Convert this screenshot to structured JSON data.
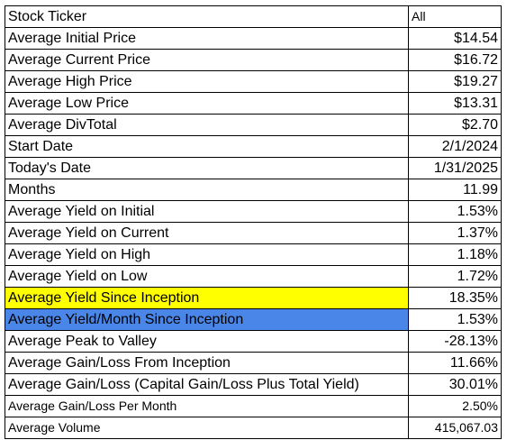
{
  "table": {
    "rows": [
      {
        "label": "Stock Ticker",
        "value": "All"
      },
      {
        "label": "Average Initial Price",
        "value": "$14.54"
      },
      {
        "label": "Average Current Price",
        "value": "$16.72"
      },
      {
        "label": "Average High Price",
        "value": "$19.27"
      },
      {
        "label": "Average Low Price",
        "value": "$13.31"
      },
      {
        "label": "Average DivTotal",
        "value": "$2.70"
      },
      {
        "label": "Start Date",
        "value": "2/1/2024"
      },
      {
        "label": "Today's Date",
        "value": "1/31/2025"
      },
      {
        "label": "Months",
        "value": "11.99"
      },
      {
        "label": "Average Yield on Initial",
        "value": "1.53%"
      },
      {
        "label": "Average Yield on Current",
        "value": "1.37%"
      },
      {
        "label": "Average Yield on High",
        "value": "1.18%"
      },
      {
        "label": "Average Yield on Low",
        "value": "1.72%"
      },
      {
        "label": "Average Yield Since Inception",
        "value": "18.35%"
      },
      {
        "label": "Average Yield/Month Since Inception",
        "value": "1.53%"
      },
      {
        "label": "Average Peak to Valley",
        "value": "-28.13%"
      },
      {
        "label": "Average Gain/Loss From Inception",
        "value": "11.66%"
      },
      {
        "label": "Average Gain/Loss (Capital Gain/Loss Plus Total Yield)",
        "value": "30.01%"
      },
      {
        "label": "Average Gain/Loss Per Month",
        "value": "2.50%"
      },
      {
        "label": "Average Volume",
        "value": "415,067.03"
      }
    ]
  },
  "highlight_colors": {
    "yellow": "#ffff00",
    "blue": "#4a86e8"
  }
}
